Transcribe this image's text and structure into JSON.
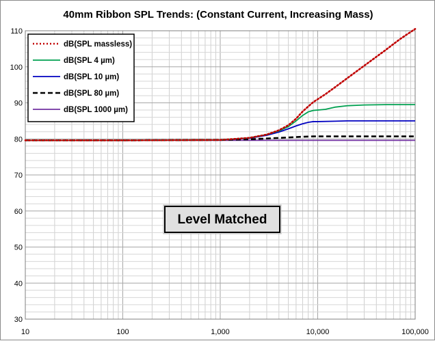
{
  "chart_data": {
    "type": "line",
    "title": "40mm Ribbon SPL Trends: (Constant Current, Increasing Mass)",
    "xscale": "log",
    "xlim": [
      10,
      100000
    ],
    "ylim": [
      30,
      110
    ],
    "grid": true,
    "legend_position": "top-left",
    "x_ticks": [
      10,
      100,
      1000,
      10000,
      100000
    ],
    "x_tick_labels": [
      "10",
      "100",
      "1,000",
      "10,000",
      "100,000"
    ],
    "y_ticks": [
      30,
      40,
      50,
      60,
      70,
      80,
      90,
      100,
      110
    ],
    "y_tick_labels": [
      "30",
      "40",
      "50",
      "60",
      "70",
      "80",
      "90",
      "100",
      "110"
    ],
    "annotation": "Level Matched",
    "series": [
      {
        "name": "dB(SPL massless)",
        "color": "#c00000",
        "style": "dotted",
        "x": [
          10,
          100,
          1000,
          2000,
          3000,
          4000,
          5000,
          6000,
          7000,
          8000,
          9000,
          10000,
          12000,
          15000,
          20000,
          30000,
          50000,
          70000,
          100000
        ],
        "y": [
          79.6,
          79.6,
          79.7,
          80.3,
          81.2,
          82.4,
          83.8,
          85.6,
          87.6,
          89.0,
          90.2,
          91.0,
          92.4,
          94.3,
          96.8,
          100.3,
          104.7,
          107.7,
          110.5
        ]
      },
      {
        "name": "dB(SPL 4 µm)",
        "color": "#00a050",
        "style": "solid",
        "x": [
          10,
          100,
          1000,
          2000,
          3000,
          4000,
          5000,
          6000,
          7000,
          8000,
          9000,
          10000,
          12000,
          15000,
          20000,
          30000,
          50000,
          100000
        ],
        "y": [
          79.6,
          79.6,
          79.7,
          80.3,
          81.2,
          82.2,
          83.4,
          85.0,
          86.5,
          87.5,
          87.9,
          88.0,
          88.2,
          88.8,
          89.2,
          89.4,
          89.5,
          89.5
        ]
      },
      {
        "name": "dB(SPL 10 µm)",
        "color": "#0000c0",
        "style": "solid",
        "x": [
          10,
          100,
          1000,
          2000,
          3000,
          4000,
          5000,
          6000,
          7000,
          8000,
          9000,
          10000,
          15000,
          20000,
          50000,
          100000
        ],
        "y": [
          79.6,
          79.6,
          79.7,
          80.2,
          81.0,
          81.9,
          82.8,
          83.6,
          84.2,
          84.6,
          84.8,
          84.8,
          84.9,
          85.0,
          85.0,
          85.0
        ]
      },
      {
        "name": "dB(SPL 80 µm)",
        "color": "#000000",
        "style": "dashed",
        "x": [
          10,
          100,
          1000,
          2000,
          3000,
          5000,
          7000,
          9000,
          10000,
          20000,
          50000,
          100000
        ],
        "y": [
          79.6,
          79.6,
          79.7,
          79.9,
          80.1,
          80.4,
          80.6,
          80.7,
          80.7,
          80.7,
          80.7,
          80.7
        ]
      },
      {
        "name": "dB(SPL 1000 µm)",
        "color": "#7030a0",
        "style": "solid",
        "x": [
          10,
          100,
          1000,
          10000,
          100000
        ],
        "y": [
          79.6,
          79.6,
          79.6,
          79.6,
          79.6
        ]
      }
    ]
  }
}
